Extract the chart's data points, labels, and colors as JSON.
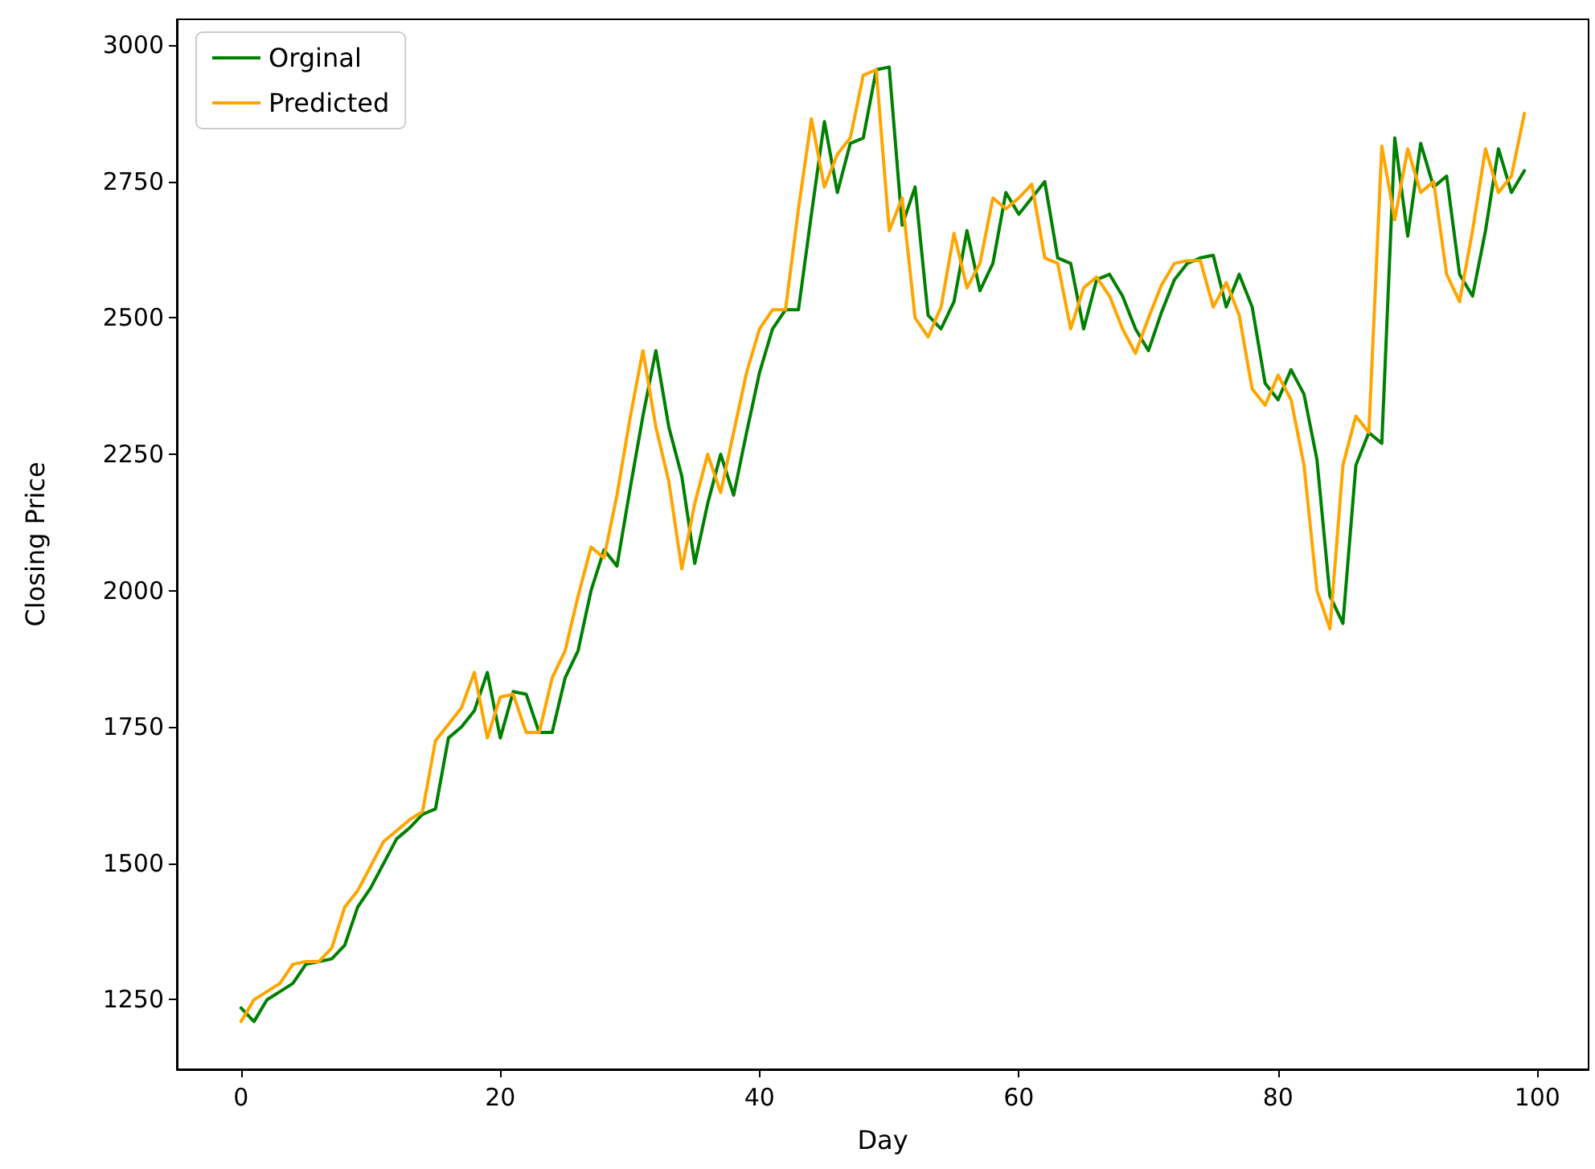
{
  "chart_data": {
    "type": "line",
    "xlabel": "Day",
    "ylabel": "Closing Price",
    "x": [
      0,
      1,
      2,
      3,
      4,
      5,
      6,
      7,
      8,
      9,
      10,
      11,
      12,
      13,
      14,
      15,
      16,
      17,
      18,
      19,
      20,
      21,
      22,
      23,
      24,
      25,
      26,
      27,
      28,
      29,
      30,
      31,
      32,
      33,
      34,
      35,
      36,
      37,
      38,
      39,
      40,
      41,
      42,
      43,
      44,
      45,
      46,
      47,
      48,
      49,
      50,
      51,
      52,
      53,
      54,
      55,
      56,
      57,
      58,
      59,
      60,
      61,
      62,
      63,
      64,
      65,
      66,
      67,
      68,
      69,
      70,
      71,
      72,
      73,
      74,
      75,
      76,
      77,
      78,
      79,
      80,
      81,
      82,
      83,
      84,
      85,
      86,
      87,
      88,
      89,
      90,
      91,
      92,
      93,
      94,
      95,
      96,
      97,
      98,
      99
    ],
    "xlim": [
      -4.95,
      103.95
    ],
    "xticks": [
      0,
      20,
      40,
      60,
      80,
      100
    ],
    "ylim": [
      1122.5,
      3047.5
    ],
    "yticks": [
      1250,
      1500,
      1750,
      2000,
      2250,
      2500,
      2750,
      3000
    ],
    "legend": "top left",
    "grid": false,
    "marker": "none",
    "line_style": "solid",
    "series": [
      {
        "name": "Orginal",
        "color": "#008000",
        "values": [
          1235,
          1210,
          1250,
          1265,
          1280,
          1315,
          1320,
          1325,
          1350,
          1420,
          1455,
          1500,
          1545,
          1565,
          1590,
          1600,
          1730,
          1750,
          1780,
          1850,
          1730,
          1815,
          1810,
          1740,
          1740,
          1840,
          1890,
          2000,
          2075,
          2045,
          2185,
          2320,
          2440,
          2300,
          2210,
          2050,
          2160,
          2250,
          2175,
          2290,
          2400,
          2480,
          2515,
          2515,
          2690,
          2860,
          2730,
          2820,
          2830,
          2955,
          2960,
          2670,
          2740,
          2505,
          2480,
          2530,
          2660,
          2550,
          2600,
          2730,
          2690,
          2720,
          2750,
          2610,
          2600,
          2480,
          2570,
          2580,
          2540,
          2480,
          2440,
          2510,
          2570,
          2600,
          2610,
          2615,
          2520,
          2580,
          2520,
          2380,
          2350,
          2405,
          2360,
          2240,
          1990,
          1940,
          2230,
          2290,
          2270,
          2830,
          2650,
          2820,
          2740,
          2760,
          2580,
          2540,
          2660,
          2810,
          2730,
          2770
        ]
      },
      {
        "name": "Predicted",
        "color": "#ffa500",
        "values": [
          1210,
          1250,
          1265,
          1280,
          1315,
          1320,
          1320,
          1345,
          1420,
          1450,
          1495,
          1540,
          1560,
          1580,
          1595,
          1725,
          1755,
          1785,
          1850,
          1730,
          1805,
          1810,
          1740,
          1740,
          1840,
          1890,
          1990,
          2080,
          2060,
          2175,
          2315,
          2440,
          2300,
          2200,
          2040,
          2160,
          2250,
          2180,
          2290,
          2400,
          2480,
          2515,
          2515,
          2700,
          2865,
          2740,
          2800,
          2830,
          2945,
          2955,
          2660,
          2720,
          2500,
          2465,
          2520,
          2655,
          2555,
          2600,
          2720,
          2700,
          2720,
          2745,
          2610,
          2600,
          2480,
          2555,
          2575,
          2540,
          2480,
          2435,
          2500,
          2560,
          2600,
          2605,
          2605,
          2520,
          2565,
          2505,
          2370,
          2340,
          2395,
          2350,
          2230,
          2000,
          1930,
          2230,
          2320,
          2290,
          2815,
          2680,
          2810,
          2730,
          2750,
          2580,
          2530,
          2660,
          2810,
          2730,
          2760,
          2875
        ]
      }
    ]
  }
}
